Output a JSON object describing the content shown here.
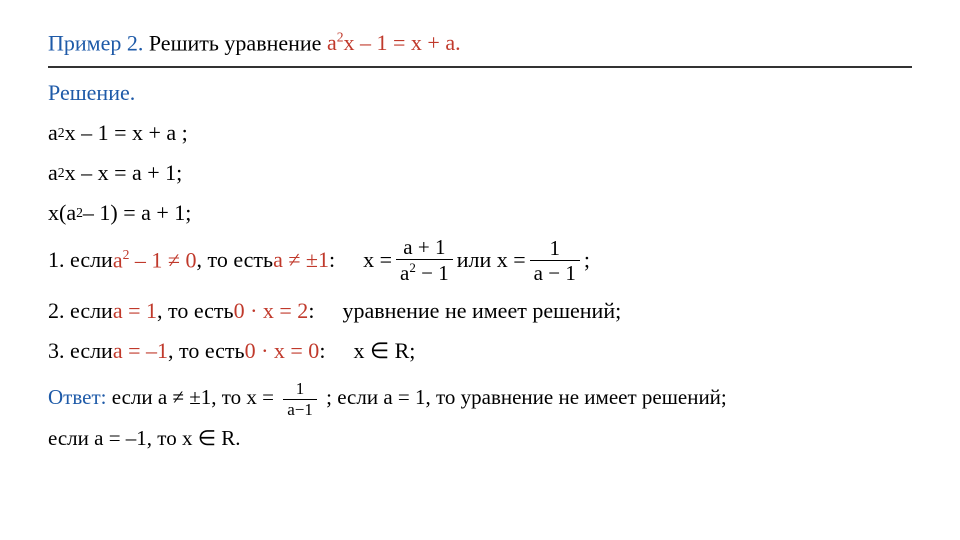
{
  "colors": {
    "blue": "#1e5aa8",
    "red": "#c0392b",
    "black": "#000000",
    "text": "#222222"
  },
  "title": {
    "label": "Пример 2.",
    "text": " Решить уравнение  ",
    "equation": "a",
    "equation2": "x – 1 = x + a."
  },
  "solution": {
    "head": "Решение."
  },
  "steps": {
    "s1a": "a",
    "s1b": "x – 1 = x + a ;",
    "s2a": "a",
    "s2b": "x – x = a + 1;",
    "s3a": "x(a",
    "s3b": " – 1) = a + 1;"
  },
  "case1": {
    "prefix": "1. если ",
    "cond1a": "a",
    "cond1b": " – 1 ≠ 0",
    "mid": ", то есть ",
    "cond2": "a ≠ ±1",
    "colon": ":",
    "rhs_xeq": "x = ",
    "frac1_num": "a + 1",
    "frac1_den_a": "a",
    "frac1_den_b": " − 1",
    "or": "  или x = ",
    "frac2_num": "1",
    "frac2_den": "a − 1",
    "semicolon": " ;"
  },
  "case2": {
    "prefix": "2. если ",
    "cond": "a = 1",
    "mid": ", то есть ",
    "expr": "0 · x = 2",
    "colon": ":",
    "rhs": "уравнение не имеет решений;"
  },
  "case3": {
    "prefix": "3. если ",
    "cond": "a = –1",
    "mid": ", то есть ",
    "expr": "0 · x = 0",
    "colon": ":",
    "rhs": "x ∈ R;"
  },
  "answer": {
    "label": "Ответ:",
    "p1": " если a ≠ ±1, то  x = ",
    "frac_num": "1",
    "frac_den": "a−1",
    "p2": " ; если a = 1, то уравнение не имеет решений;",
    "p3": "если a = –1, то x ∈ R."
  }
}
